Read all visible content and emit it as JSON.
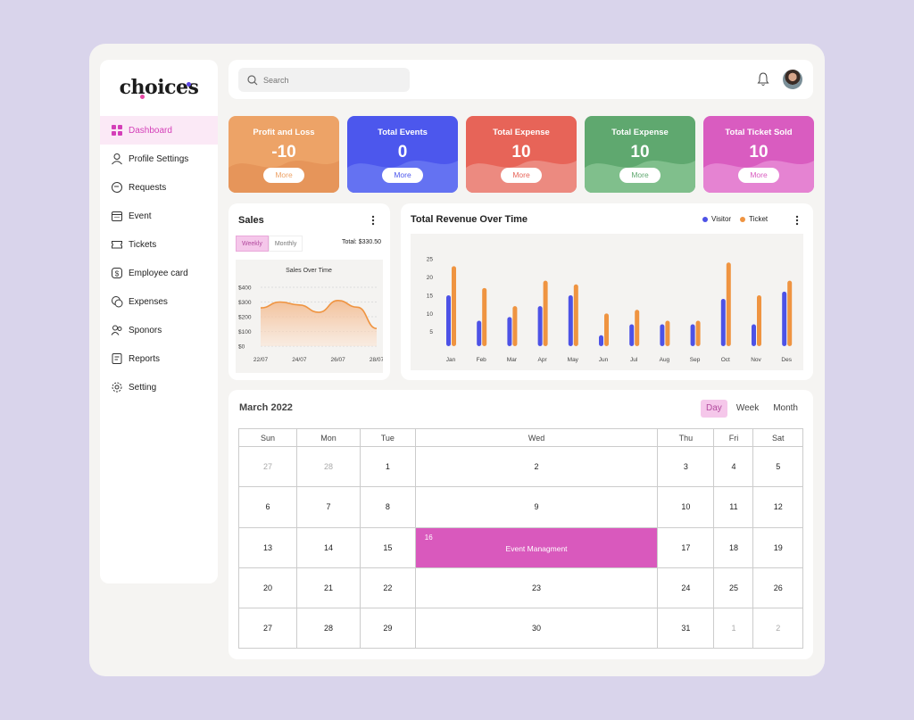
{
  "brand": {
    "logo_text": "choices",
    "dot_colors": [
      "#e74aa6",
      "#5a44e6"
    ]
  },
  "sidebar": {
    "items": [
      {
        "label": "Dashboard",
        "icon": "dashboard-grid-icon",
        "active": true
      },
      {
        "label": "Profile Settings",
        "icon": "user-icon"
      },
      {
        "label": "Requests",
        "icon": "chat-bubble-icon"
      },
      {
        "label": "Event",
        "icon": "calendar-icon"
      },
      {
        "label": "Tickets",
        "icon": "ticket-icon"
      },
      {
        "label": "Employee card",
        "icon": "dollar-card-icon"
      },
      {
        "label": "Expenses",
        "icon": "coins-icon"
      },
      {
        "label": "Sponors",
        "icon": "users-icon"
      },
      {
        "label": "Reports",
        "icon": "report-icon"
      },
      {
        "label": "Setting",
        "icon": "gear-icon"
      }
    ]
  },
  "search": {
    "placeholder": "Search"
  },
  "header": {
    "notification_icon": "bell-icon",
    "avatar": "user-avatar"
  },
  "stats": [
    {
      "title": "Profit and Loss",
      "value": "-10",
      "button": "More",
      "color": "#eda367",
      "wave": "#e6955a"
    },
    {
      "title": "Total Events",
      "value": "0",
      "button": "More",
      "color": "#4c57ed",
      "wave": "#6472f2"
    },
    {
      "title": "Total Expense",
      "value": "10",
      "button": "More",
      "color": "#e76458",
      "wave": "#ec8a80"
    },
    {
      "title": "Total Expense",
      "value": "10",
      "button": "More",
      "color": "#5fa86f",
      "wave": "#80bf8c"
    },
    {
      "title": "Total Ticket Sold",
      "value": "10",
      "button": "More",
      "color": "#d95cc0",
      "wave": "#e583d2"
    }
  ],
  "sales": {
    "title": "Sales",
    "tabs": [
      "Weekly",
      "Monthly"
    ],
    "total": "Total: $330.50",
    "chart_title": "Sales Over Time"
  },
  "revenue": {
    "title": "Total Revenue Over Time",
    "legend": [
      {
        "label": "Visitor",
        "color": "#4d52e6"
      },
      {
        "label": "Ticket",
        "color": "#ef9441"
      }
    ]
  },
  "chart_data": [
    {
      "type": "area",
      "title": "Sales Over Time",
      "x": [
        "22/07",
        "24/07",
        "26/07",
        "28/07"
      ],
      "y_ticks": [
        "$0",
        "$100",
        "$200",
        "$300",
        "$400"
      ],
      "ylim": [
        0,
        400
      ],
      "points": [
        [
          0,
          260
        ],
        [
          0.5,
          300
        ],
        [
          1,
          280
        ],
        [
          1.5,
          230
        ],
        [
          2,
          310
        ],
        [
          2.5,
          265
        ],
        [
          3,
          120
        ]
      ],
      "color": "#ef9441"
    },
    {
      "type": "bar",
      "title": "Total Revenue Over Time",
      "categories": [
        "Jan",
        "Feb",
        "Mar",
        "Apr",
        "May",
        "Jun",
        "Jul",
        "Aug",
        "Sep",
        "Oct",
        "Nov",
        "Des"
      ],
      "y_ticks": [
        5,
        10,
        15,
        20,
        25
      ],
      "ylim": [
        1,
        28
      ],
      "series": [
        {
          "name": "Visitor",
          "color": "#4d52e6",
          "values": [
            15,
            8,
            9,
            12,
            15,
            4,
            7,
            7,
            7,
            14,
            7,
            16
          ]
        },
        {
          "name": "Ticket",
          "color": "#ef9441",
          "values": [
            23,
            17,
            12,
            19,
            18,
            10,
            11,
            8,
            8,
            24,
            15,
            19
          ]
        }
      ]
    }
  ],
  "calendar": {
    "title": "March 2022",
    "views": [
      "Day",
      "Week",
      "Month"
    ],
    "active_view": "Day",
    "weekdays": [
      "Sun",
      "Mon",
      "Tue",
      "Wed",
      "Thu",
      "Fri",
      "Sat"
    ],
    "weeks": [
      [
        {
          "d": "27",
          "m": true
        },
        {
          "d": "28",
          "m": true
        },
        {
          "d": "1"
        },
        {
          "d": "2"
        },
        {
          "d": "3"
        },
        {
          "d": "4"
        },
        {
          "d": "5"
        }
      ],
      [
        {
          "d": "6"
        },
        {
          "d": "7"
        },
        {
          "d": "8"
        },
        {
          "d": "9"
        },
        {
          "d": "10"
        },
        {
          "d": "11"
        },
        {
          "d": "12"
        }
      ],
      [
        {
          "d": "13"
        },
        {
          "d": "14"
        },
        {
          "d": "15"
        },
        {
          "d": "16",
          "event": "Event Managment"
        },
        {
          "d": "17"
        },
        {
          "d": "18"
        },
        {
          "d": "19"
        }
      ],
      [
        {
          "d": "20"
        },
        {
          "d": "21"
        },
        {
          "d": "22"
        },
        {
          "d": "23"
        },
        {
          "d": "24"
        },
        {
          "d": "25"
        },
        {
          "d": "26"
        }
      ],
      [
        {
          "d": "27"
        },
        {
          "d": "28"
        },
        {
          "d": "29"
        },
        {
          "d": "30"
        },
        {
          "d": "31"
        },
        {
          "d": "1",
          "m": true
        },
        {
          "d": "2",
          "m": true
        }
      ]
    ]
  }
}
